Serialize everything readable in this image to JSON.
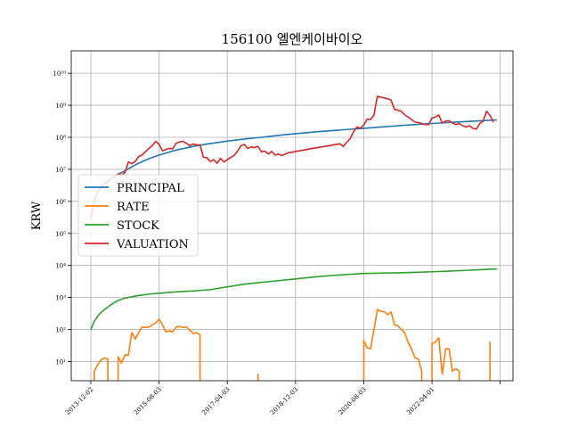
{
  "chart_data": {
    "type": "line",
    "title": "156100 엘엔케이바이오",
    "xlabel": "",
    "ylabel": "KRW",
    "y_scale": "log",
    "ylim_exp": [
      0.4,
      10.7
    ],
    "x_range": [
      0,
      118
    ],
    "grid": true,
    "legend_position": "center-left",
    "x_ticks": [
      {
        "label": "2013-12-02",
        "x": 0
      },
      {
        "label": "2015-08-03",
        "x": 20
      },
      {
        "label": "2017-04-03",
        "x": 40
      },
      {
        "label": "2018-12-03",
        "x": 60
      },
      {
        "label": "2020-08-03",
        "x": 80
      },
      {
        "label": "2022-04-01",
        "x": 100
      },
      {
        "label": "",
        "x": 120
      }
    ],
    "y_ticks": [
      {
        "label": "10¹",
        "exp": 1
      },
      {
        "label": "10²",
        "exp": 2
      },
      {
        "label": "10³",
        "exp": 3
      },
      {
        "label": "10⁴",
        "exp": 4
      },
      {
        "label": "10⁵",
        "exp": 5
      },
      {
        "label": "10⁶",
        "exp": 6
      },
      {
        "label": "10⁷",
        "exp": 7
      },
      {
        "label": "10⁸",
        "exp": 8
      },
      {
        "label": "10⁹",
        "exp": 9
      },
      {
        "label": "10¹⁰",
        "exp": 10
      }
    ],
    "series": [
      {
        "name": "PRINCIPAL",
        "color": "#1f77b4",
        "points": [
          [
            0,
            300000
          ],
          [
            1,
            1100000
          ],
          [
            2,
            2000000
          ],
          [
            3,
            2900000
          ],
          [
            4,
            3700000
          ],
          [
            5,
            4400000
          ],
          [
            6,
            5100000
          ],
          [
            7,
            6000000
          ],
          [
            8,
            7000000
          ],
          [
            10,
            9000000
          ],
          [
            12,
            12000000
          ],
          [
            14,
            15500000
          ],
          [
            16,
            19500000
          ],
          [
            18,
            23500000
          ],
          [
            20,
            28000000
          ],
          [
            25,
            40000000
          ],
          [
            30,
            52000000
          ],
          [
            35,
            64000000
          ],
          [
            40,
            76000000
          ],
          [
            45,
            88000000
          ],
          [
            50,
            100000000
          ],
          [
            55,
            115000000
          ],
          [
            60,
            130000000
          ],
          [
            65,
            145000000
          ],
          [
            70,
            160000000
          ],
          [
            75,
            175000000
          ],
          [
            80,
            190000000
          ],
          [
            85,
            210000000
          ],
          [
            90,
            230000000
          ],
          [
            95,
            250000000
          ],
          [
            100,
            270000000
          ],
          [
            105,
            290000000
          ],
          [
            110,
            310000000
          ],
          [
            115,
            330000000
          ],
          [
            119,
            350000000
          ]
        ]
      },
      {
        "name": "RATE",
        "color": "#ff7f0e",
        "segments": [
          [
            [
              1,
              5
            ],
            [
              2,
              8
            ],
            [
              3,
              11
            ],
            [
              4,
              13
            ],
            [
              5,
              12
            ]
          ],
          [
            [
              8,
              14
            ],
            [
              9,
              9
            ],
            [
              10,
              16
            ],
            [
              11,
              16
            ],
            [
              12,
              80
            ],
            [
              13,
              50
            ],
            [
              14,
              80
            ],
            [
              15,
              120
            ],
            [
              16,
              115
            ],
            [
              17,
              120
            ],
            [
              19,
              160
            ],
            [
              20,
              210
            ],
            [
              21,
              140
            ],
            [
              22,
              85
            ],
            [
              23,
              90
            ],
            [
              24,
              85
            ],
            [
              25,
              120
            ],
            [
              26,
              125
            ],
            [
              27,
              115
            ],
            [
              28,
              120
            ],
            [
              29,
              95
            ],
            [
              30,
              75
            ],
            [
              31,
              80
            ],
            [
              32,
              68
            ]
          ],
          [
            [
              49,
              4
            ]
          ],
          [
            [
              80,
              45
            ],
            [
              81,
              27
            ],
            [
              82,
              25
            ],
            [
              83,
              100
            ],
            [
              84,
              420
            ],
            [
              85,
              370
            ],
            [
              86,
              360
            ],
            [
              87,
              290
            ],
            [
              88,
              350
            ],
            [
              89,
              140
            ],
            [
              90,
              130
            ],
            [
              91,
              100
            ],
            [
              92,
              80
            ],
            [
              93,
              40
            ],
            [
              94,
              25
            ],
            [
              95,
              13
            ],
            [
              96,
              12
            ],
            [
              97,
              5
            ]
          ],
          [
            [
              100,
              37
            ],
            [
              101,
              40
            ],
            [
              102,
              55
            ],
            [
              103,
              4
            ],
            [
              104,
              25
            ],
            [
              105,
              25
            ],
            [
              106,
              5
            ],
            [
              107,
              6
            ],
            [
              108,
              5
            ]
          ],
          [
            [
              117,
              40
            ]
          ]
        ]
      },
      {
        "name": "STOCK",
        "color": "#2ca02c",
        "points": [
          [
            0,
            100
          ],
          [
            1,
            180
          ],
          [
            2,
            260
          ],
          [
            3,
            340
          ],
          [
            4,
            420
          ],
          [
            5,
            500
          ],
          [
            6,
            600
          ],
          [
            7,
            700
          ],
          [
            8,
            800
          ],
          [
            9,
            880
          ],
          [
            10,
            950
          ],
          [
            12,
            1050
          ],
          [
            14,
            1150
          ],
          [
            16,
            1230
          ],
          [
            18,
            1300
          ],
          [
            20,
            1350
          ],
          [
            25,
            1500
          ],
          [
            30,
            1600
          ],
          [
            35,
            1750
          ],
          [
            40,
            2150
          ],
          [
            45,
            2600
          ],
          [
            50,
            2950
          ],
          [
            55,
            3350
          ],
          [
            60,
            3800
          ],
          [
            65,
            4300
          ],
          [
            70,
            4800
          ],
          [
            75,
            5200
          ],
          [
            80,
            5600
          ],
          [
            85,
            5750
          ],
          [
            90,
            5900
          ],
          [
            95,
            6100
          ],
          [
            100,
            6350
          ],
          [
            105,
            6650
          ],
          [
            110,
            7000
          ],
          [
            115,
            7450
          ],
          [
            119,
            7800
          ]
        ]
      },
      {
        "name": "VALUATION",
        "color": "#d62728",
        "points": [
          [
            0,
            300000
          ],
          [
            1,
            1100000
          ],
          [
            2,
            2000000
          ],
          [
            3,
            2800000
          ],
          [
            4,
            3600000
          ],
          [
            5,
            3800000
          ],
          [
            6,
            5200000
          ],
          [
            7,
            6000000
          ],
          [
            8,
            7200000
          ],
          [
            9,
            6500000
          ],
          [
            10,
            8000000
          ],
          [
            11,
            17000000
          ],
          [
            12,
            15000000
          ],
          [
            13,
            17500000
          ],
          [
            14,
            25000000
          ],
          [
            15,
            28000000
          ],
          [
            16,
            35000000
          ],
          [
            17,
            45000000
          ],
          [
            18,
            55000000
          ],
          [
            19,
            75000000
          ],
          [
            20,
            60000000
          ],
          [
            21,
            38000000
          ],
          [
            22,
            42000000
          ],
          [
            23,
            45000000
          ],
          [
            24,
            44000000
          ],
          [
            25,
            65000000
          ],
          [
            26,
            72000000
          ],
          [
            27,
            75000000
          ],
          [
            28,
            65000000
          ],
          [
            29,
            55000000
          ],
          [
            30,
            62000000
          ],
          [
            31,
            58000000
          ],
          [
            32,
            58000000
          ],
          [
            33,
            24000000
          ],
          [
            34,
            23000000
          ],
          [
            35,
            17500000
          ],
          [
            36,
            20000000
          ],
          [
            37,
            15500000
          ],
          [
            38,
            22000000
          ],
          [
            39,
            17000000
          ],
          [
            40,
            20000000
          ],
          [
            41,
            23500000
          ],
          [
            42,
            27000000
          ],
          [
            43,
            37000000
          ],
          [
            44,
            55000000
          ],
          [
            45,
            60000000
          ],
          [
            46,
            45000000
          ],
          [
            47,
            50000000
          ],
          [
            48,
            48000000
          ],
          [
            49,
            52000000
          ],
          [
            50,
            35000000
          ],
          [
            51,
            37000000
          ],
          [
            52,
            30000000
          ],
          [
            53,
            36000000
          ],
          [
            54,
            28000000
          ],
          [
            55,
            30000000
          ],
          [
            56,
            27000000
          ],
          [
            57,
            30000000
          ],
          [
            58,
            33000000
          ],
          [
            60,
            36000000
          ],
          [
            65,
            45000000
          ],
          [
            70,
            55000000
          ],
          [
            73,
            63000000
          ],
          [
            74,
            52000000
          ],
          [
            75,
            70000000
          ],
          [
            76,
            90000000
          ],
          [
            77,
            150000000
          ],
          [
            78,
            210000000
          ],
          [
            79,
            190000000
          ],
          [
            80,
            240000000
          ],
          [
            81,
            370000000
          ],
          [
            82,
            360000000
          ],
          [
            83,
            500000000
          ],
          [
            84,
            1900000000
          ],
          [
            85,
            1800000000
          ],
          [
            86,
            1700000000
          ],
          [
            87,
            1600000000
          ],
          [
            88,
            1450000000
          ],
          [
            89,
            750000000
          ],
          [
            90,
            700000000
          ],
          [
            91,
            650000000
          ],
          [
            92,
            500000000
          ],
          [
            93,
            430000000
          ],
          [
            94,
            360000000
          ],
          [
            95,
            300000000
          ],
          [
            96,
            290000000
          ],
          [
            97,
            270000000
          ],
          [
            98,
            250000000
          ],
          [
            99,
            250000000
          ],
          [
            100,
            400000000
          ],
          [
            101,
            430000000
          ],
          [
            102,
            500000000
          ],
          [
            103,
            280000000
          ],
          [
            104,
            320000000
          ],
          [
            105,
            330000000
          ],
          [
            106,
            280000000
          ],
          [
            107,
            250000000
          ],
          [
            108,
            270000000
          ],
          [
            109,
            230000000
          ],
          [
            110,
            210000000
          ],
          [
            111,
            230000000
          ],
          [
            112,
            190000000
          ],
          [
            113,
            180000000
          ],
          [
            114,
            270000000
          ],
          [
            115,
            320000000
          ],
          [
            116,
            650000000
          ],
          [
            117,
            480000000
          ],
          [
            118,
            300000000
          ]
        ]
      }
    ]
  }
}
